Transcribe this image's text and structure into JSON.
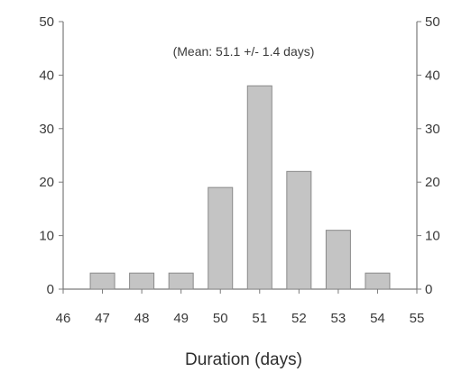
{
  "chart_data": {
    "type": "bar",
    "categories": [
      "47",
      "48",
      "49",
      "50",
      "51",
      "52",
      "53",
      "54"
    ],
    "x": [
      47,
      48,
      49,
      50,
      51,
      52,
      53,
      54
    ],
    "values": [
      3,
      3,
      3,
      19,
      38,
      22,
      11,
      3
    ],
    "title": "",
    "xlabel": "Duration (days)",
    "ylabel": "",
    "annotation": "(Mean: 51.1 +/- 1.4 days)",
    "xlim": [
      46,
      55
    ],
    "ylim": [
      0,
      50
    ],
    "x_ticks": [
      "46",
      "47",
      "48",
      "49",
      "50",
      "51",
      "52",
      "53",
      "54",
      "55"
    ],
    "y_ticks": [
      "0",
      "10",
      "20",
      "30",
      "40",
      "50"
    ],
    "grid": false,
    "legend": "none",
    "mirror_y_axis_right": true,
    "colors": {
      "bar_fill": "#c4c4c4",
      "bar_stroke": "#8a8a8a",
      "axis": "#7a7a7a",
      "text": "#3a3a3a"
    }
  }
}
